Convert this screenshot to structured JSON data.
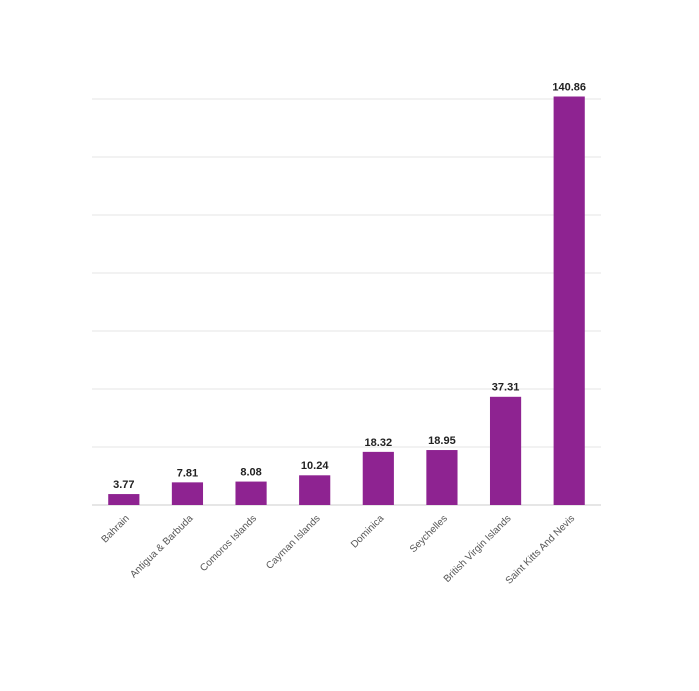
{
  "chart_data": {
    "type": "bar",
    "categories": [
      "Bahrain",
      "Antigua & Barbuda",
      "Comoros Islands",
      "Cayman Islands",
      "Dominica",
      "Seychelles",
      "British Virgin Islands",
      "Saint Kitts And Nevis"
    ],
    "values": [
      3.77,
      7.81,
      8.08,
      10.24,
      18.32,
      18.95,
      37.31,
      140.86
    ],
    "color": "#8e2391",
    "ylim": [
      0,
      140
    ],
    "yticks": [
      0,
      20,
      40,
      60,
      80,
      100,
      120,
      140
    ],
    "grid": true
  }
}
